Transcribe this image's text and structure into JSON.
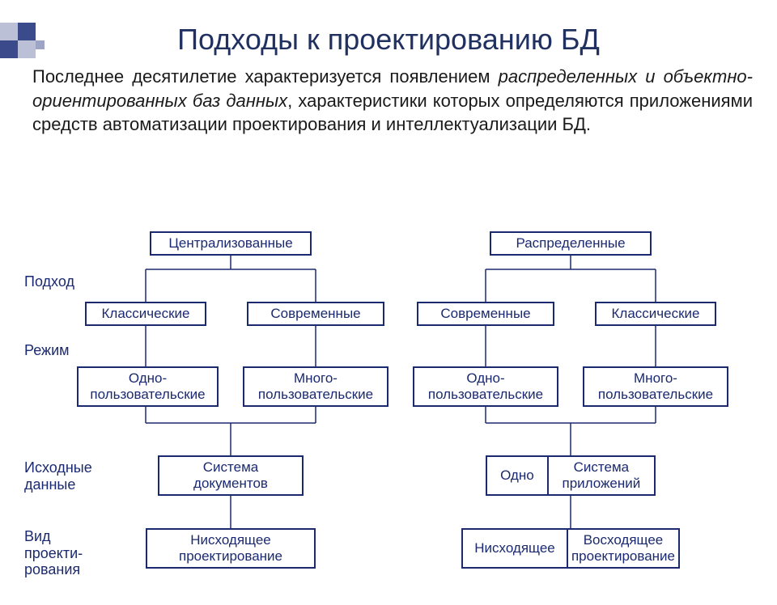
{
  "title": "Подходы к проектированию БД",
  "intro": {
    "part1": "Последнее десятилетие характеризуется появлением ",
    "ital": "распределенных и объектно-ориентированных баз данных",
    "part2": ", характеристики которых определяются приложениями средств автоматизации проектирования и интеллектуализации БД."
  },
  "labels": {
    "approach": "Подход",
    "mode": "Режим",
    "source": "Исходные\nданные",
    "design_type": "Вид\nпроекти-\nрования"
  },
  "left": {
    "root": "Централизованные",
    "approach": [
      "Классические",
      "Современные"
    ],
    "mode": [
      "Одно-\nпользовательские",
      "Много-\nпользовательские"
    ],
    "source": "Система\nдокументов",
    "design": "Нисходящее\nпроектирование"
  },
  "right": {
    "root": "Распределенные",
    "approach": [
      "Современные",
      "Классические"
    ],
    "mode": [
      "Одно-\nпользовательские",
      "Много-\nпользовательские"
    ],
    "source": [
      "Одно",
      "Система\nприложений"
    ],
    "design": [
      "Нисходящее",
      "Восходящее\nпроектирование"
    ]
  },
  "colors": {
    "border": "#1b2a70",
    "text": "#1b2a70",
    "title": "#203060",
    "body_text": "#1a1a1a",
    "bg": "#ffffff",
    "deco": "#3b4a8a"
  },
  "layout": {
    "node_font_size": 17,
    "label_font_size": 18,
    "title_font_size": 36,
    "intro_font_size": 22
  }
}
